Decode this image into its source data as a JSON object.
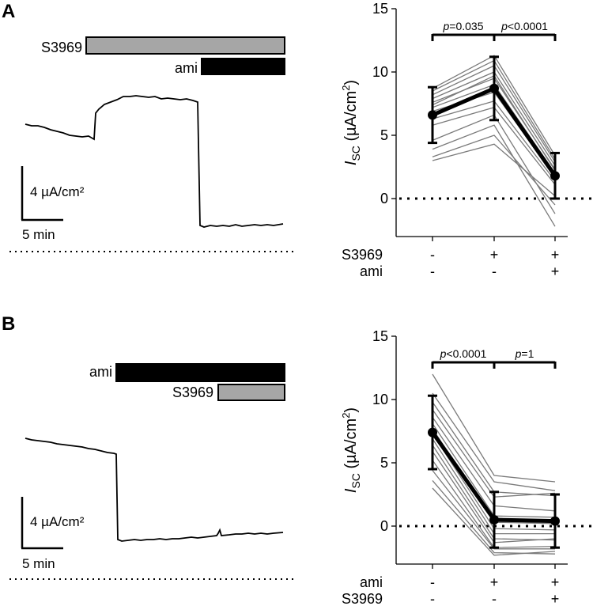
{
  "panels": [
    {
      "letter": "A",
      "trace": {
        "bars": [
          {
            "label": "S3969",
            "color": "#a6a6a6"
          },
          {
            "label": "ami",
            "color": "#000000"
          }
        ],
        "scale_y": "4 µA/cm²",
        "scale_x": "5 min"
      }
    },
    {
      "letter": "B",
      "trace": {
        "bars": [
          {
            "label": "ami",
            "color": "#000000"
          },
          {
            "label": "S3969",
            "color": "#a6a6a6"
          }
        ],
        "scale_y": "4 µA/cm²",
        "scale_x": "5 min"
      }
    }
  ],
  "chart_data": [
    {
      "type": "line",
      "panel": "A",
      "ylabel": "I_SC (µA/cm²)",
      "ylim": [
        -3,
        15
      ],
      "yticks": [
        0,
        5,
        10,
        15
      ],
      "x_rows": [
        {
          "label": "S3969",
          "values": [
            "-",
            "+",
            "+"
          ]
        },
        {
          "label": "ami",
          "values": [
            "-",
            "-",
            "+"
          ]
        }
      ],
      "mean": {
        "values": [
          6.6,
          8.7,
          1.8
        ],
        "sd": [
          2.2,
          2.5,
          1.8
        ]
      },
      "individual": [
        [
          3.0,
          4.3,
          0.2
        ],
        [
          3.3,
          5.0,
          -0.5
        ],
        [
          3.9,
          5.8,
          -2.2
        ],
        [
          4.6,
          6.6,
          -1.2
        ],
        [
          5.8,
          7.2,
          1.1
        ],
        [
          6.3,
          7.7,
          1.4
        ],
        [
          6.9,
          8.4,
          1.7
        ],
        [
          7.2,
          9.0,
          2.0
        ],
        [
          7.6,
          9.5,
          2.3
        ],
        [
          7.9,
          10.0,
          2.6
        ],
        [
          8.2,
          10.5,
          2.9
        ],
        [
          8.5,
          10.9,
          3.1
        ],
        [
          8.7,
          11.3,
          3.4
        ],
        [
          7.4,
          9.7,
          2.2
        ]
      ],
      "significance": [
        {
          "between": [
            0,
            1
          ],
          "label": "p=0.035"
        },
        {
          "between": [
            1,
            2
          ],
          "label": "p<0.0001"
        }
      ],
      "zero_line": "dotted"
    },
    {
      "type": "line",
      "panel": "B",
      "ylabel": "I_SC (µA/cm²)",
      "ylim": [
        -3,
        15
      ],
      "yticks": [
        0,
        5,
        10,
        15
      ],
      "x_rows": [
        {
          "label": "ami",
          "values": [
            "-",
            "+",
            "+"
          ]
        },
        {
          "label": "S3969",
          "values": [
            "-",
            "-",
            "+"
          ]
        }
      ],
      "mean": {
        "values": [
          7.4,
          0.5,
          0.4
        ],
        "sd": [
          2.9,
          2.2,
          2.1
        ]
      },
      "individual": [
        [
          12.0,
          4.0,
          3.5
        ],
        [
          10.5,
          3.5,
          2.8
        ],
        [
          9.8,
          2.7,
          2.4
        ],
        [
          9.2,
          2.3,
          2.6
        ],
        [
          8.6,
          1.6,
          1.2
        ],
        [
          8.1,
          0.8,
          0.7
        ],
        [
          7.7,
          0.3,
          0.2
        ],
        [
          7.3,
          -0.2,
          -0.3
        ],
        [
          6.9,
          -0.6,
          -0.6
        ],
        [
          6.4,
          -1.0,
          -1.1
        ],
        [
          5.9,
          -1.3,
          -1.0
        ],
        [
          5.2,
          -1.7,
          -1.6
        ],
        [
          4.4,
          -1.8,
          -1.8
        ],
        [
          3.6,
          -2.1,
          -2.2
        ],
        [
          3.0,
          -2.3,
          -2.0
        ]
      ],
      "significance": [
        {
          "between": [
            0,
            1
          ],
          "label": "p<0.0001"
        },
        {
          "between": [
            1,
            2
          ],
          "label": "p=1"
        }
      ],
      "zero_line": "dotted"
    }
  ]
}
